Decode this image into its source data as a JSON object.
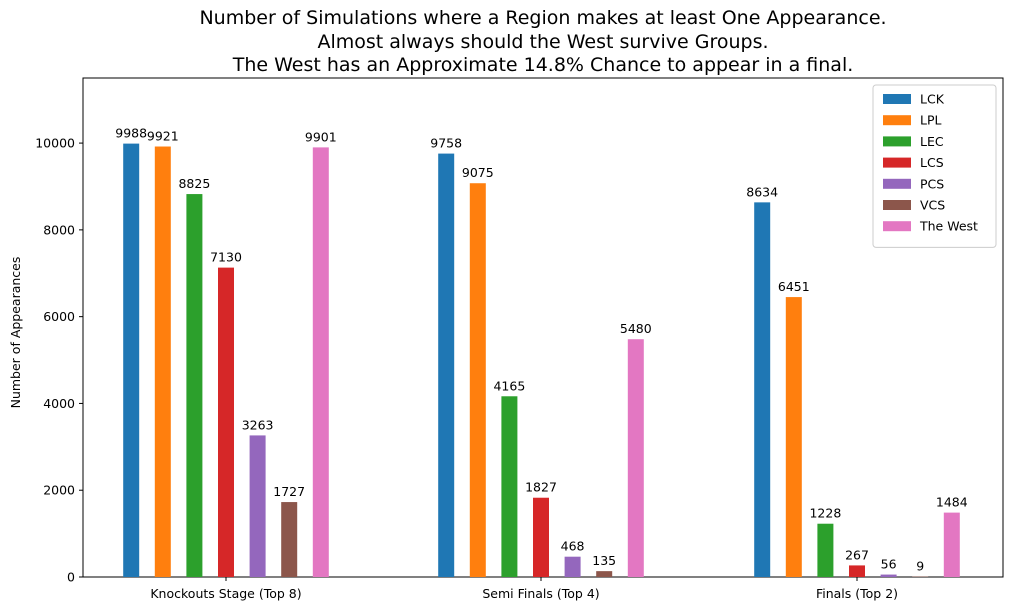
{
  "chart_data": {
    "type": "bar",
    "title": [
      "Number of Simulations where a Region makes at least One Appearance.",
      "Almost always should the West survive Groups.",
      "The West has an Approximate 14.8% Chance to appear in a final."
    ],
    "xlabel": "",
    "ylabel": "Number of Appearances",
    "categories": [
      "Knockouts Stage (Top 8)",
      "Semi Finals (Top 4)",
      "Finals (Top 2)"
    ],
    "ylim": [
      0,
      11500
    ],
    "yticks": [
      0,
      2000,
      4000,
      6000,
      8000,
      10000
    ],
    "legend_position": "top-right",
    "grid": false,
    "series": [
      {
        "name": "LCK",
        "color": "#1f77b4",
        "values": [
          9988,
          9758,
          8634
        ]
      },
      {
        "name": "LPL",
        "color": "#ff7f0e",
        "values": [
          9921,
          9075,
          6451
        ]
      },
      {
        "name": "LEC",
        "color": "#2ca02c",
        "values": [
          8825,
          4165,
          1228
        ]
      },
      {
        "name": "LCS",
        "color": "#d62728",
        "values": [
          7130,
          1827,
          267
        ]
      },
      {
        "name": "PCS",
        "color": "#9467bd",
        "values": [
          3263,
          468,
          56
        ]
      },
      {
        "name": "VCS",
        "color": "#8c564b",
        "values": [
          1727,
          135,
          9
        ]
      },
      {
        "name": "The West",
        "color": "#e377c2",
        "values": [
          9901,
          5480,
          1484
        ]
      }
    ]
  }
}
